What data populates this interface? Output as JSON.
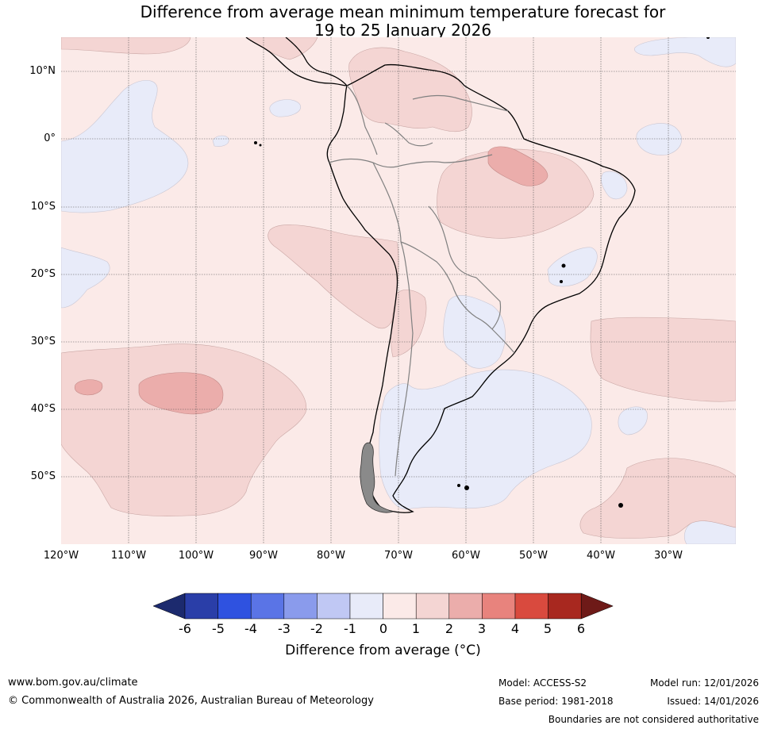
{
  "title": {
    "line1": "Difference from average mean minimum temperature forecast for",
    "line2": "19 to 25 January 2026"
  },
  "map": {
    "latitude_labels": [
      "10°N",
      "0°",
      "10°S",
      "20°S",
      "30°S",
      "40°S",
      "50°S"
    ],
    "longitude_labels": [
      "120°W",
      "110°W",
      "100°W",
      "90°W",
      "80°W",
      "70°W",
      "60°W",
      "50°W",
      "40°W",
      "30°W"
    ],
    "colors": {
      "land_outline": "#000000",
      "border_line": "#808080",
      "grid_line": "#555555",
      "anom_0_1": "#fbeae8",
      "anom_1_2": "#f4d5d3",
      "anom_2_3": "#ebadab",
      "anom_neg1_0": "#e8ebf9"
    }
  },
  "colorbar": {
    "ticks": [
      "-6",
      "-5",
      "-4",
      "-3",
      "-2",
      "-1",
      "0",
      "1",
      "2",
      "3",
      "4",
      "5",
      "6"
    ],
    "bins": [
      "#2a3ea8",
      "#2f52e0",
      "#5a74e6",
      "#8a9bec",
      "#c0c8f4",
      "#e8ebf9",
      "#fbeae8",
      "#f4d5d3",
      "#ebadab",
      "#e8837d",
      "#d94a3e",
      "#a8281f"
    ],
    "low_extend_color": "#1c2a6e",
    "high_extend_color": "#6e1a18",
    "label": "Difference from average (°C)"
  },
  "footer": {
    "website": "www.bom.gov.au/climate",
    "copyright": "© Commonwealth of Australia 2026, Australian Bureau of Meteorology",
    "model": "Model: ACCESS-S2",
    "base_period": "Base period: 1981-2018",
    "model_run": "Model run: 12/01/2026",
    "issued": "Issued: 14/01/2026",
    "disclaimer": "Boundaries are not considered authoritative"
  }
}
